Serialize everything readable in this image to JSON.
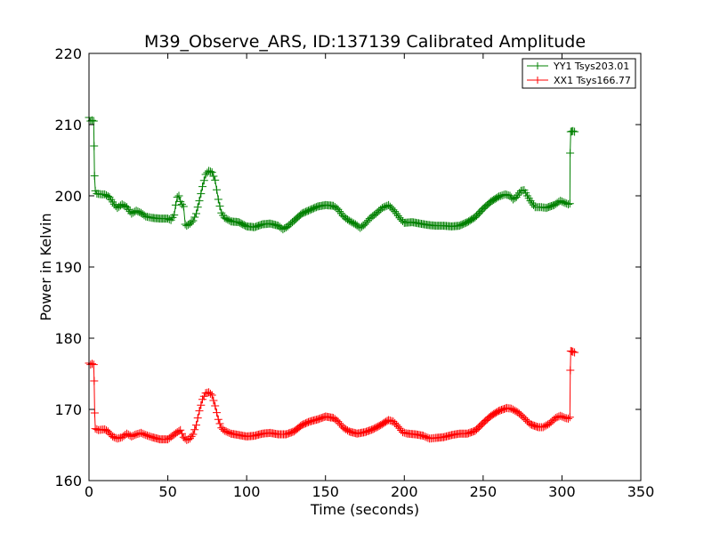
{
  "chart_data": {
    "type": "line",
    "title": "M39_Observe_ARS, ID:137139 Calibrated Amplitude",
    "xlabel": "Time (seconds)",
    "ylabel": "Power in Kelvin",
    "xlim": [
      0,
      350
    ],
    "ylim": [
      160,
      220
    ],
    "xticks": [
      0,
      50,
      100,
      150,
      200,
      250,
      300,
      350
    ],
    "yticks": [
      160,
      170,
      180,
      190,
      200,
      210,
      220
    ],
    "grid": false,
    "legend_position": "top-right",
    "marker": "+",
    "series": [
      {
        "name": "YY1 Tsys203.01",
        "color": "#008000",
        "points": [
          [
            0,
            211
          ],
          [
            1,
            210.5
          ],
          [
            2,
            210.6
          ],
          [
            3,
            210.5
          ],
          [
            3.2,
            207
          ],
          [
            3.5,
            202.8
          ],
          [
            4,
            200.7
          ],
          [
            5,
            200.3
          ],
          [
            8,
            200.2
          ],
          [
            10,
            200.2
          ],
          [
            13,
            199.8
          ],
          [
            16,
            198.8
          ],
          [
            18,
            198.3
          ],
          [
            21,
            198.8
          ],
          [
            24,
            198.4
          ],
          [
            27,
            197.5
          ],
          [
            30,
            197.9
          ],
          [
            33,
            197.6
          ],
          [
            36,
            197.1
          ],
          [
            40,
            196.9
          ],
          [
            45,
            196.8
          ],
          [
            50,
            196.8
          ],
          [
            52,
            196.6
          ],
          [
            54,
            197.3
          ],
          [
            55,
            198.7
          ],
          [
            56,
            199.8
          ],
          [
            57,
            200
          ],
          [
            58,
            199.2
          ],
          [
            59,
            198.8
          ],
          [
            60,
            198.5
          ],
          [
            61,
            196
          ],
          [
            62,
            195.8
          ],
          [
            64,
            196.1
          ],
          [
            66,
            196.5
          ],
          [
            68,
            197.5
          ],
          [
            70,
            199.3
          ],
          [
            72,
            201.3
          ],
          [
            74,
            203
          ],
          [
            76,
            203.5
          ],
          [
            78,
            203.3
          ],
          [
            80,
            202.2
          ],
          [
            82,
            199.5
          ],
          [
            84,
            197.6
          ],
          [
            86,
            196.9
          ],
          [
            90,
            196.4
          ],
          [
            95,
            196.3
          ],
          [
            100,
            195.7
          ],
          [
            105,
            195.6
          ],
          [
            110,
            196
          ],
          [
            115,
            196.1
          ],
          [
            120,
            195.8
          ],
          [
            123,
            195.3
          ],
          [
            126,
            195.7
          ],
          [
            130,
            196.5
          ],
          [
            135,
            197.5
          ],
          [
            140,
            198
          ],
          [
            145,
            198.5
          ],
          [
            150,
            198.7
          ],
          [
            155,
            198.6
          ],
          [
            158,
            198.1
          ],
          [
            161,
            197.2
          ],
          [
            165,
            196.5
          ],
          [
            169,
            196
          ],
          [
            172,
            195.5
          ],
          [
            175,
            196
          ],
          [
            178,
            196.8
          ],
          [
            182,
            197.5
          ],
          [
            186,
            198.3
          ],
          [
            190,
            198.7
          ],
          [
            194,
            197.8
          ],
          [
            197,
            196.9
          ],
          [
            200,
            196.2
          ],
          [
            205,
            196.3
          ],
          [
            210,
            196.1
          ],
          [
            215,
            195.9
          ],
          [
            220,
            195.8
          ],
          [
            225,
            195.8
          ],
          [
            230,
            195.7
          ],
          [
            235,
            195.8
          ],
          [
            240,
            196.3
          ],
          [
            245,
            197
          ],
          [
            250,
            198.2
          ],
          [
            255,
            199.2
          ],
          [
            260,
            199.9
          ],
          [
            264,
            200.2
          ],
          [
            267,
            200
          ],
          [
            269,
            199.5
          ],
          [
            271,
            199.8
          ],
          [
            274,
            200.7
          ],
          [
            276,
            200.8
          ],
          [
            278,
            200
          ],
          [
            280,
            199.3
          ],
          [
            283,
            198.4
          ],
          [
            287,
            198.4
          ],
          [
            290,
            198.3
          ],
          [
            295,
            198.7
          ],
          [
            299,
            199.3
          ],
          [
            302,
            199
          ],
          [
            304,
            198.8
          ],
          [
            305,
            198.9
          ],
          [
            305.2,
            206
          ],
          [
            305.6,
            209
          ],
          [
            307,
            209.1
          ],
          [
            308,
            209
          ]
        ]
      },
      {
        "name": "XX1 Tsys166.77",
        "color": "#ff0000",
        "points": [
          [
            0,
            176.5
          ],
          [
            1,
            176.3
          ],
          [
            2,
            176.4
          ],
          [
            3,
            176.3
          ],
          [
            3.3,
            174
          ],
          [
            3.6,
            169.5
          ],
          [
            4,
            167.3
          ],
          [
            6,
            167.1
          ],
          [
            10,
            167.2
          ],
          [
            12,
            166.9
          ],
          [
            15,
            166.2
          ],
          [
            18,
            165.9
          ],
          [
            21,
            166.1
          ],
          [
            24,
            166.6
          ],
          [
            27,
            166.2
          ],
          [
            30,
            166.5
          ],
          [
            33,
            166.7
          ],
          [
            36,
            166.4
          ],
          [
            40,
            166.1
          ],
          [
            45,
            165.8
          ],
          [
            50,
            165.8
          ],
          [
            53,
            166.3
          ],
          [
            56,
            166.8
          ],
          [
            58,
            167.1
          ],
          [
            60,
            166.1
          ],
          [
            62,
            165.7
          ],
          [
            64,
            165.9
          ],
          [
            66,
            166.5
          ],
          [
            68,
            167.8
          ],
          [
            70,
            169.8
          ],
          [
            72,
            171.4
          ],
          [
            74,
            172.3
          ],
          [
            76,
            172.4
          ],
          [
            78,
            172
          ],
          [
            80,
            170.5
          ],
          [
            82,
            168.6
          ],
          [
            84,
            167.4
          ],
          [
            86,
            167
          ],
          [
            90,
            166.6
          ],
          [
            95,
            166.4
          ],
          [
            100,
            166.2
          ],
          [
            105,
            166.3
          ],
          [
            110,
            166.6
          ],
          [
            115,
            166.7
          ],
          [
            120,
            166.5
          ],
          [
            125,
            166.5
          ],
          [
            130,
            166.9
          ],
          [
            135,
            167.8
          ],
          [
            140,
            168.3
          ],
          [
            145,
            168.6
          ],
          [
            150,
            169
          ],
          [
            155,
            168.8
          ],
          [
            158,
            168.3
          ],
          [
            161,
            167.5
          ],
          [
            165,
            166.9
          ],
          [
            170,
            166.6
          ],
          [
            175,
            166.8
          ],
          [
            180,
            167.2
          ],
          [
            185,
            167.8
          ],
          [
            190,
            168.5
          ],
          [
            193,
            168.3
          ],
          [
            196,
            167.6
          ],
          [
            199,
            166.8
          ],
          [
            202,
            166.6
          ],
          [
            207,
            166.5
          ],
          [
            212,
            166.3
          ],
          [
            216,
            165.9
          ],
          [
            220,
            166
          ],
          [
            225,
            166.1
          ],
          [
            230,
            166.4
          ],
          [
            235,
            166.6
          ],
          [
            240,
            166.6
          ],
          [
            245,
            167
          ],
          [
            250,
            168.1
          ],
          [
            255,
            169.1
          ],
          [
            260,
            169.8
          ],
          [
            265,
            170.2
          ],
          [
            268,
            170.1
          ],
          [
            272,
            169.6
          ],
          [
            276,
            168.8
          ],
          [
            280,
            167.9
          ],
          [
            285,
            167.5
          ],
          [
            288,
            167.5
          ],
          [
            292,
            168
          ],
          [
            296,
            168.8
          ],
          [
            299,
            169.1
          ],
          [
            302,
            168.8
          ],
          [
            304,
            168.7
          ],
          [
            305,
            168.9
          ],
          [
            305.3,
            175.5
          ],
          [
            305.6,
            178.2
          ],
          [
            307,
            178.1
          ],
          [
            308,
            178
          ]
        ]
      }
    ]
  }
}
